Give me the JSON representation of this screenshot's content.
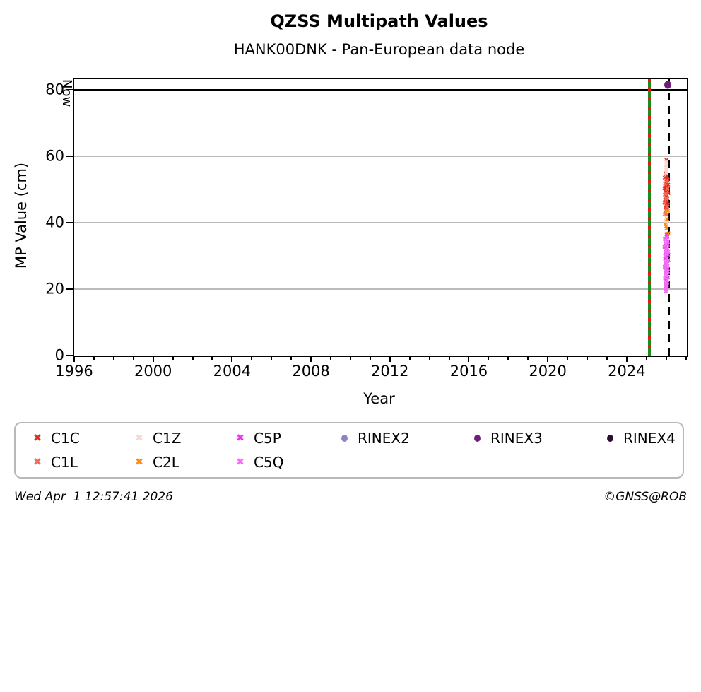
{
  "header": {
    "title": "QZSS Multipath Values",
    "subtitle": "HANK00DNK - Pan-European data node"
  },
  "footer": {
    "timestamp": "Wed Apr  1 12:57:41 2026",
    "credit": "©GNSS@ROB"
  },
  "chart_data": {
    "type": "scatter",
    "title": "QZSS Multipath Values",
    "subtitle": "HANK00DNK - Pan-European data node",
    "xlabel": "Year",
    "ylabel": "MP Value (cm)",
    "xlim": [
      1996,
      2027.05
    ],
    "ylim": [
      0,
      83.2
    ],
    "x_major_ticks": [
      1996,
      2000,
      2004,
      2008,
      2012,
      2016,
      2020,
      2024
    ],
    "x_minor_step": 1,
    "y_ticks": [
      0,
      20,
      40,
      60,
      80
    ],
    "gridlines_y": [
      20,
      40,
      60
    ],
    "grid": "horizontal-only",
    "hline": {
      "y": 80,
      "color": "#000000"
    },
    "vlines": [
      {
        "x": 2025.15,
        "style": "green-red-dashed",
        "color": "#1e8a1e",
        "dash_color": "#d81f10",
        "label": ""
      },
      {
        "x": 2026.15,
        "style": "dashed",
        "color": "#000000",
        "label": "Now"
      }
    ],
    "legend_order": [
      "C1C",
      "C1Z",
      "C5P",
      "RINEX2",
      "RINEX3",
      "RINEX4",
      "C1L",
      "C2L",
      "C5Q"
    ],
    "series": [
      {
        "id": "C1C",
        "label": "C1C",
        "marker": "x",
        "color": "#e62e17",
        "points": [
          [
            2026.02,
            58.6
          ],
          [
            2025.97,
            54.3
          ],
          [
            2026.05,
            53.7
          ],
          [
            2025.93,
            53.2
          ],
          [
            2026.08,
            52.6
          ],
          [
            2026.0,
            52.1
          ],
          [
            2025.95,
            51.5
          ],
          [
            2026.1,
            51.0
          ],
          [
            2026.03,
            50.5
          ],
          [
            2025.91,
            50.0
          ],
          [
            2026.06,
            49.5
          ],
          [
            2025.98,
            49.0
          ],
          [
            2026.12,
            48.5
          ],
          [
            2025.94,
            48.1
          ],
          [
            2026.01,
            47.6
          ],
          [
            2026.07,
            47.1
          ],
          [
            2025.96,
            46.6
          ],
          [
            2026.04,
            46.1
          ],
          [
            2025.92,
            45.7
          ],
          [
            2026.09,
            45.2
          ],
          [
            2026.0,
            44.8
          ],
          [
            2025.97,
            44.3
          ],
          [
            2026.05,
            43.9
          ],
          [
            2025.99,
            43.5
          ],
          [
            2026.02,
            47.9
          ],
          [
            2025.99,
            50.8
          ],
          [
            2026.04,
            52.9
          ],
          [
            2025.96,
            49.8
          ],
          [
            2026.01,
            45.9
          ]
        ]
      },
      {
        "id": "C1L",
        "label": "C1L",
        "marker": "x",
        "color": "#f4695a",
        "points": [
          [
            2026.03,
            52.4
          ],
          [
            2025.95,
            51.2
          ],
          [
            2026.07,
            49.7
          ],
          [
            2025.98,
            48.3
          ],
          [
            2026.02,
            47.0
          ],
          [
            2025.93,
            45.6
          ],
          [
            2026.06,
            44.5
          ],
          [
            2026.0,
            43.4
          ],
          [
            2025.97,
            42.6
          ],
          [
            2026.04,
            41.9
          ],
          [
            2026.01,
            46.8
          ]
        ]
      },
      {
        "id": "C1Z",
        "label": "C1Z",
        "marker": "x",
        "color": "#f9d7d2",
        "points": [
          [
            2026.0,
            57.9
          ],
          [
            2026.02,
            57.1
          ],
          [
            2025.99,
            56.3
          ],
          [
            2026.01,
            55.5
          ],
          [
            2026.0,
            54.7
          ],
          [
            2026.02,
            41.0
          ],
          [
            2025.98,
            40.3
          ],
          [
            2026.01,
            39.7
          ],
          [
            2026.0,
            39.1
          ]
        ]
      },
      {
        "id": "C2L",
        "label": "C2L",
        "marker": "x",
        "color": "#fb8c14",
        "points": [
          [
            2026.09,
            43.1
          ],
          [
            2025.92,
            42.1
          ],
          [
            2026.05,
            40.6
          ],
          [
            2025.96,
            39.2
          ],
          [
            2026.02,
            37.8
          ],
          [
            2026.11,
            36.4
          ],
          [
            2025.94,
            35.0
          ],
          [
            2026.07,
            33.7
          ],
          [
            2025.98,
            32.5
          ],
          [
            2026.03,
            31.5
          ],
          [
            2026.0,
            38.6
          ]
        ]
      },
      {
        "id": "C5P",
        "label": "C5P",
        "marker": "x",
        "color": "#e63be6",
        "points": [
          [
            2026.01,
            36.1
          ],
          [
            2026.06,
            35.4
          ],
          [
            2025.94,
            34.7
          ],
          [
            2026.03,
            34.1
          ],
          [
            2025.98,
            33.5
          ],
          [
            2026.09,
            32.9
          ],
          [
            2025.92,
            32.3
          ],
          [
            2026.0,
            31.7
          ],
          [
            2026.05,
            31.1
          ],
          [
            2025.96,
            30.5
          ],
          [
            2026.11,
            29.9
          ],
          [
            2026.02,
            29.3
          ],
          [
            2025.95,
            28.7
          ],
          [
            2026.07,
            28.1
          ],
          [
            2025.99,
            27.5
          ],
          [
            2026.04,
            26.9
          ],
          [
            2025.93,
            26.3
          ],
          [
            2026.08,
            25.7
          ],
          [
            2026.0,
            25.1
          ],
          [
            2025.97,
            24.5
          ],
          [
            2026.03,
            23.9
          ],
          [
            2026.1,
            23.3
          ],
          [
            2025.95,
            22.7
          ],
          [
            2026.01,
            22.1
          ],
          [
            2026.06,
            21.5
          ],
          [
            2025.98,
            20.9
          ],
          [
            2026.02,
            20.3
          ],
          [
            2026.0,
            19.8
          ]
        ]
      },
      {
        "id": "C5Q",
        "label": "C5Q",
        "marker": "x",
        "color": "#f26ef6",
        "points": [
          [
            2026.04,
            35.2
          ],
          [
            2025.96,
            34.4
          ],
          [
            2026.08,
            33.8
          ],
          [
            2026.0,
            33.2
          ],
          [
            2025.93,
            32.6
          ],
          [
            2026.06,
            32.0
          ],
          [
            2025.98,
            31.4
          ],
          [
            2026.1,
            30.8
          ],
          [
            2026.01,
            30.2
          ],
          [
            2025.95,
            29.6
          ],
          [
            2026.05,
            29.0
          ],
          [
            2026.12,
            28.4
          ],
          [
            2025.97,
            27.8
          ],
          [
            2026.02,
            27.2
          ],
          [
            2026.07,
            26.6
          ],
          [
            2025.94,
            26.0
          ],
          [
            2026.0,
            25.4
          ],
          [
            2026.09,
            24.8
          ],
          [
            2025.98,
            24.2
          ],
          [
            2026.03,
            23.6
          ],
          [
            2025.96,
            23.0
          ],
          [
            2026.06,
            22.4
          ],
          [
            2026.01,
            21.8
          ],
          [
            2025.99,
            21.2
          ],
          [
            2026.04,
            20.6
          ],
          [
            2026.0,
            20.0
          ],
          [
            2026.02,
            19.4
          ],
          [
            2025.98,
            19.0
          ]
        ]
      },
      {
        "id": "RINEX2",
        "label": "RINEX2",
        "marker": "dot",
        "color": "#8b84c9",
        "points": []
      },
      {
        "id": "RINEX3",
        "label": "RINEX3",
        "marker": "dot",
        "color": "#6d1f78",
        "points": [
          [
            2026.1,
            81.4
          ]
        ]
      },
      {
        "id": "RINEX4",
        "label": "RINEX4",
        "marker": "dot",
        "color": "#2a0d30",
        "points": []
      }
    ]
  }
}
